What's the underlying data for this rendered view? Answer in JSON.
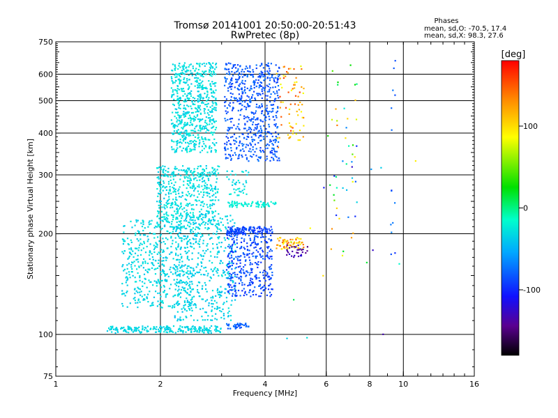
{
  "chart_data": {
    "type": "scatter",
    "title": "Tromsø 20141001 20:50:00-20:51:43",
    "subtitle": "RwPretec (8p)",
    "xlabel": "Frequency [MHz]",
    "ylabel": "Stationary phase Virtual Height [km]",
    "x_scale": "log",
    "y_scale": "log",
    "xlim": [
      1,
      16
    ],
    "ylim": [
      75,
      750
    ],
    "grid": true,
    "x_ticks": [
      "1",
      "2",
      "4",
      "6",
      "8",
      "10",
      "16"
    ],
    "y_ticks": [
      "75",
      "100",
      "200",
      "300",
      "400",
      "500",
      "600",
      "750"
    ],
    "x_grid_values": [
      2,
      4,
      6,
      8,
      10
    ],
    "y_grid_values": [
      100,
      200,
      300,
      400,
      500,
      600
    ],
    "phase_legend": {
      "title": "Phases",
      "line_o": "mean, sd,O: -70.5, 17.4",
      "line_x": "mean, sd,X:  98.3, 27.6"
    },
    "colorbar": {
      "label": "[deg]",
      "range": [
        -180,
        180
      ],
      "ticks": [
        "100",
        "0",
        "-100"
      ],
      "tick_values": [
        100,
        0,
        -100
      ]
    },
    "clusters": [
      {
        "x": [
          2.15,
          2.9
        ],
        "y": [
          350,
          650
        ],
        "phase": [
          -40,
          -20
        ],
        "n": 650
      },
      {
        "x": [
          3.05,
          4.4
        ],
        "y": [
          330,
          650
        ],
        "phase": [
          -95,
          -70
        ],
        "n": 600
      },
      {
        "x": [
          4.3,
          5.2
        ],
        "y": [
          380,
          640
        ],
        "phase": [
          80,
          160
        ],
        "n": 70
      },
      {
        "x": [
          1.95,
          2.95
        ],
        "y": [
          205,
          320
        ],
        "phase": [
          -40,
          -20
        ],
        "n": 500
      },
      {
        "x": [
          1.55,
          2.5
        ],
        "y": [
          120,
          220
        ],
        "phase": [
          -40,
          -25
        ],
        "n": 500
      },
      {
        "x": [
          2.2,
          3.3
        ],
        "y": [
          110,
          230
        ],
        "phase": [
          -45,
          -25
        ],
        "n": 420
      },
      {
        "x": [
          3.1,
          4.2
        ],
        "y": [
          130,
          210
        ],
        "phase": [
          -100,
          -75
        ],
        "n": 380
      },
      {
        "x": [
          3.1,
          4.2
        ],
        "y": [
          200,
          210
        ],
        "phase": [
          -100,
          -80
        ],
        "n": 90
      },
      {
        "x": [
          3.1,
          4.3
        ],
        "y": [
          240,
          250
        ],
        "phase": [
          -30,
          -15
        ],
        "n": 80
      },
      {
        "x": [
          3.1,
          3.6
        ],
        "y": [
          260,
          310
        ],
        "phase": [
          -40,
          -20
        ],
        "n": 40
      },
      {
        "x": [
          1.4,
          3.0
        ],
        "y": [
          101,
          106
        ],
        "phase": [
          -40,
          -25
        ],
        "n": 220
      },
      {
        "x": [
          3.1,
          3.6
        ],
        "y": [
          104,
          108
        ],
        "phase": [
          -90,
          -70
        ],
        "n": 40
      },
      {
        "x": [
          4.3,
          5.2
        ],
        "y": [
          180,
          195
        ],
        "phase": [
          80,
          150
        ],
        "n": 60
      },
      {
        "x": [
          4.6,
          5.3
        ],
        "y": [
          170,
          185
        ],
        "phase": [
          -150,
          -120
        ],
        "n": 30
      },
      {
        "x": [
          6.2,
          7.4
        ],
        "y": [
          160,
          640
        ],
        "phase": [
          -100,
          140
        ],
        "n": 45
      },
      {
        "x": [
          9.2,
          9.5
        ],
        "y": [
          170,
          660
        ],
        "phase": [
          -120,
          -60
        ],
        "n": 14
      },
      {
        "x": [
          4.2,
          11.0
        ],
        "y": [
          90,
          620
        ],
        "phase": [
          -140,
          150
        ],
        "n": 20
      }
    ]
  }
}
